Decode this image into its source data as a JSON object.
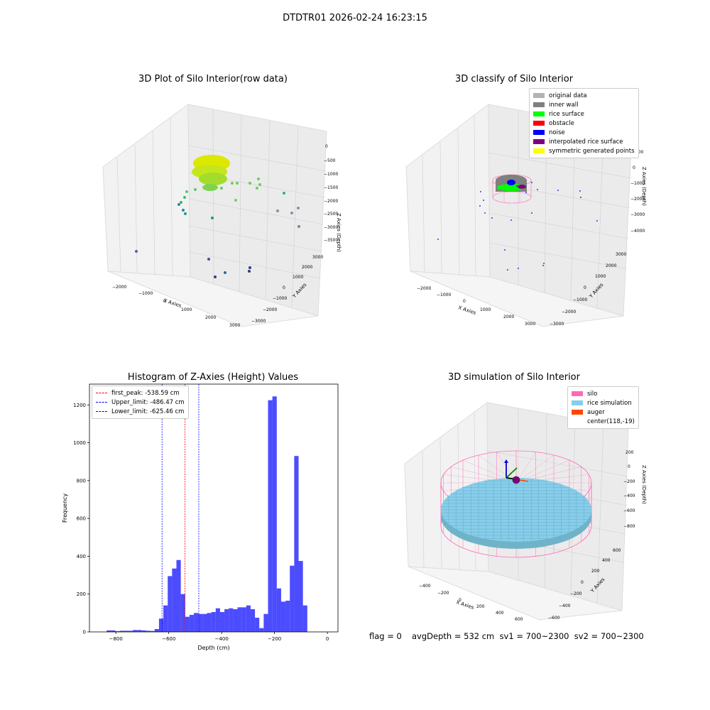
{
  "suptitle": "DTDTR01 2026-02-24 16:23:15",
  "panels": {
    "raw": {
      "title": "3D Plot of Silo Interior(row data)",
      "xlabel": "X Axies",
      "ylabel": "Y Axies",
      "zlabel": "Z Axies (Depth)",
      "xticks": [
        "−2000",
        "−1000",
        "0",
        "1000",
        "2000",
        "3000"
      ],
      "yticks": [
        "−3000",
        "−2000",
        "−1000",
        "0",
        "1000",
        "2000",
        "3000"
      ],
      "zticks": [
        "0",
        "−500",
        "−1000",
        "−1500",
        "−2000",
        "−2500",
        "−3000",
        "−3500"
      ]
    },
    "classify": {
      "title": "3D classify of Silo Interior",
      "xlabel": "X Axies",
      "ylabel": "Y Axies",
      "zlabel": "Z Axies (Depth)",
      "xticks": [
        "−2000",
        "−1000",
        "0",
        "1000",
        "2000",
        "3000"
      ],
      "yticks": [
        "−3000",
        "−2000",
        "−1000",
        "0",
        "1000",
        "2000",
        "3000"
      ],
      "zticks": [
        "1000",
        "0",
        "−1000",
        "−2000",
        "−3000",
        "−4000"
      ],
      "legend": [
        {
          "label": "original data",
          "color": "#b3b3b3"
        },
        {
          "label": "inner wall",
          "color": "#808080"
        },
        {
          "label": "rice surface",
          "color": "#00ff00"
        },
        {
          "label": "obstacle",
          "color": "#ff0000"
        },
        {
          "label": "noise",
          "color": "#0000ff"
        },
        {
          "label": "interpolated rice surface",
          "color": "#800080"
        },
        {
          "label": "symmetric generated points",
          "color": "#ffff00"
        }
      ]
    },
    "simulation": {
      "title": "3D simulation of Silo Interior",
      "xlabel": "X Axies",
      "ylabel": "Y Axies",
      "zlabel": "Z Axies (Depth)",
      "xticks": [
        "−400",
        "−200",
        "0",
        "200",
        "400",
        "600"
      ],
      "yticks": [
        "−600",
        "−400",
        "−200",
        "0",
        "200",
        "400",
        "600"
      ],
      "zticks": [
        "200",
        "0",
        "−200",
        "−400",
        "−600",
        "−800"
      ],
      "legend": [
        {
          "label": "silo",
          "color": "#ff69b4"
        },
        {
          "label": "rice simulation",
          "color": "#87ceeb"
        },
        {
          "label": "auger",
          "color": "#ff4500"
        },
        {
          "label": "center(118,-19)",
          "color": ""
        }
      ]
    }
  },
  "status": {
    "flag": "flag = 0",
    "avg": "avgDepth = 532 cm  sv1 = 700~2300  sv2 = 700~2300"
  },
  "chart_data": [
    {
      "type": "bar",
      "title": "Histogram of Z-Axies (Height) Values",
      "xlabel": "Depth (cm)",
      "ylabel": "Frequency",
      "xlim": [
        -900,
        40
      ],
      "ylim": [
        0,
        1310
      ],
      "xticks": [
        -800,
        -600,
        -400,
        -200,
        0
      ],
      "yticks": [
        0,
        200,
        400,
        600,
        800,
        1000,
        1200
      ],
      "bin_width": 16.5,
      "bin_start": -835,
      "values": [
        8,
        8,
        4,
        6,
        6,
        6,
        10,
        10,
        8,
        6,
        5,
        15,
        70,
        140,
        295,
        335,
        380,
        200,
        80,
        90,
        100,
        95,
        95,
        100,
        105,
        125,
        105,
        120,
        125,
        120,
        130,
        130,
        140,
        120,
        75,
        20,
        95,
        1225,
        1245,
        230,
        160,
        165,
        350,
        930,
        375,
        140
      ],
      "color": "#0000ff",
      "vlines": [
        {
          "label": "first_peak: -538.59 cm",
          "x": -538.59,
          "color": "#ff0000"
        },
        {
          "label": "Upper_limit: -486.47 cm",
          "x": -486.47,
          "color": "#0000ff"
        },
        {
          "label": "Lower_limit: -625.46 cm",
          "x": -625.46,
          "color": "#0000ff"
        }
      ],
      "legend_position": "upper-left"
    }
  ]
}
